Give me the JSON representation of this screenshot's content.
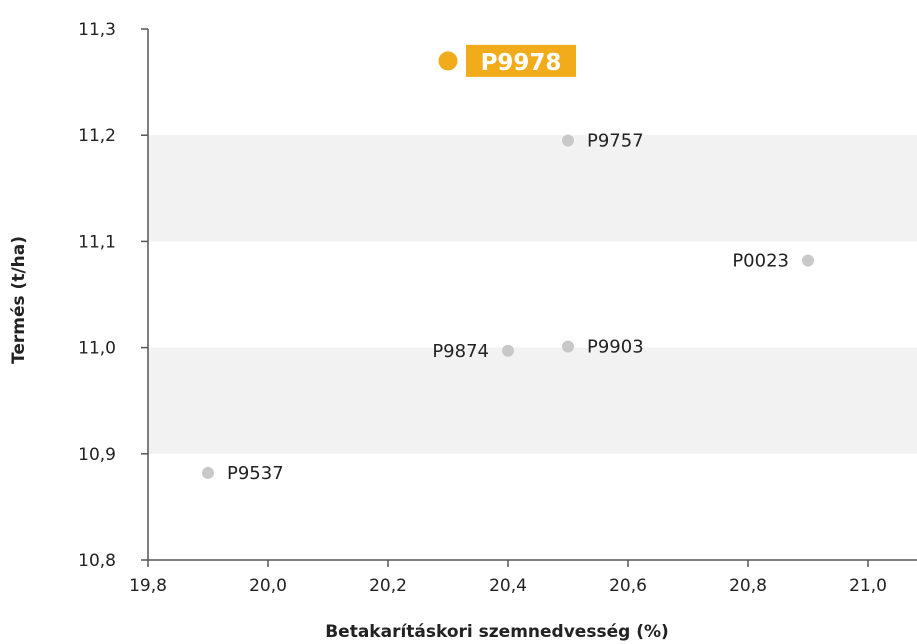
{
  "chart_data": {
    "type": "scatter",
    "title": "",
    "xlabel": "Betakarításkori szemnedvesség (%)",
    "ylabel": "Termés (t/ha)",
    "xlim": [
      19.8,
      21.0
    ],
    "ylim": [
      10.8,
      11.3
    ],
    "x_ticks": [
      19.8,
      20.0,
      20.2,
      20.4,
      20.6,
      20.8,
      21.0
    ],
    "x_tick_labels": [
      "19,8",
      "20,0",
      "20,2",
      "20,4",
      "20,6",
      "20,8",
      "21,0"
    ],
    "y_ticks": [
      10.8,
      10.9,
      11.0,
      11.1,
      11.2,
      11.3
    ],
    "y_tick_labels": [
      "10,8",
      "10,9",
      "11,0",
      "11,1",
      "11,2",
      "11,3"
    ],
    "banded_background": true,
    "points": [
      {
        "label": "P9978",
        "x": 20.3,
        "y": 11.27,
        "highlight": true,
        "label_side": "right"
      },
      {
        "label": "P9757",
        "x": 20.5,
        "y": 11.195,
        "highlight": false,
        "label_side": "right"
      },
      {
        "label": "P0023",
        "x": 20.9,
        "y": 11.082,
        "highlight": false,
        "label_side": "left"
      },
      {
        "label": "P9874",
        "x": 20.4,
        "y": 10.997,
        "highlight": false,
        "label_side": "left"
      },
      {
        "label": "P9903",
        "x": 20.5,
        "y": 11.001,
        "highlight": false,
        "label_side": "right"
      },
      {
        "label": "P9537",
        "x": 19.9,
        "y": 10.882,
        "highlight": false,
        "label_side": "right"
      }
    ],
    "colors": {
      "highlight": "#f2ab1b",
      "point": "#c8c8c8",
      "band": "#f2f2f2",
      "axis": "#555555",
      "text": "#222222",
      "label_on_highlight": "#ffffff"
    }
  }
}
